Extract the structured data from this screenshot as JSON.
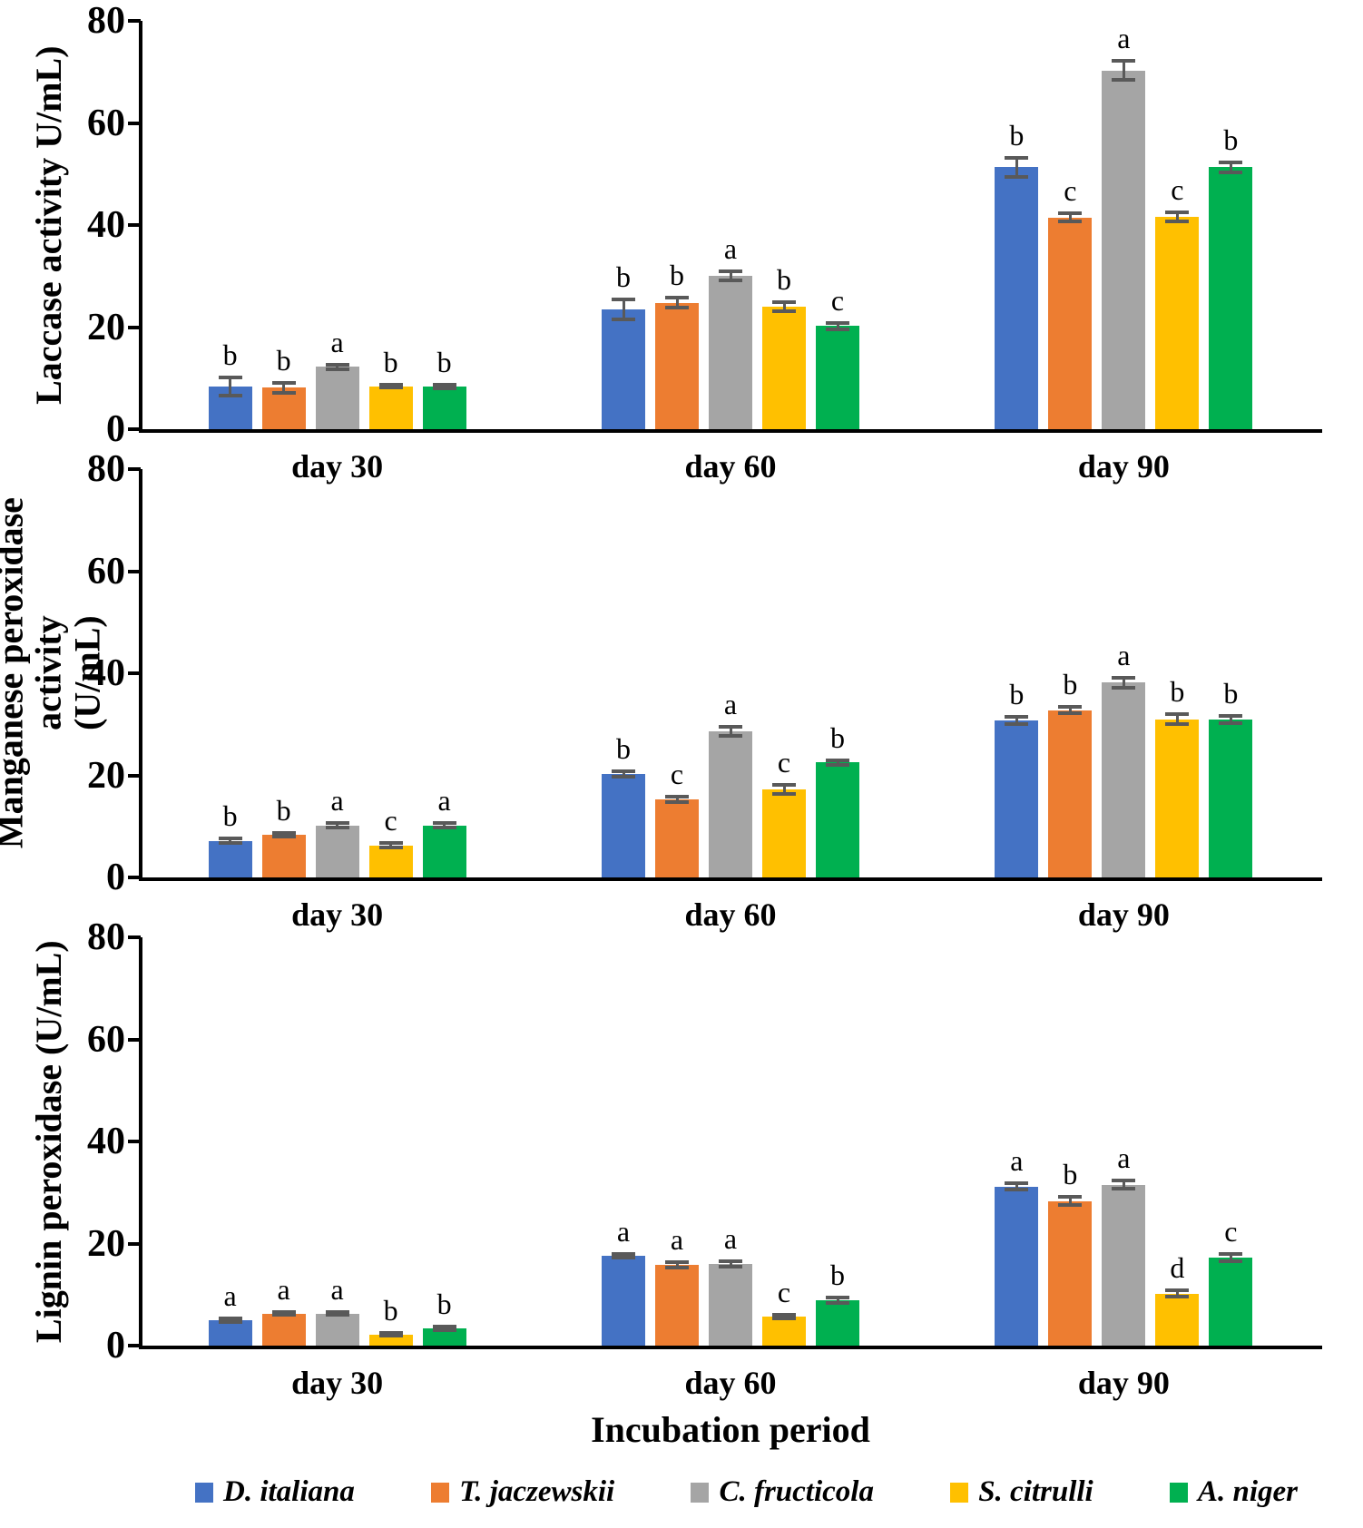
{
  "figure": {
    "xlabel": "Incubation period"
  },
  "colors": {
    "axis": "#000000",
    "error_bar": "#595959",
    "blue": "#4472C4",
    "orange": "#ED7D31",
    "gray": "#A5A5A5",
    "yellow": "#FFC000",
    "green": "#00B050"
  },
  "legend": {
    "items": [
      {
        "label": "D. italiana",
        "color": "#4472C4"
      },
      {
        "label": "T. jaczewskii",
        "color": "#ED7D31"
      },
      {
        "label": "C. fructicola",
        "color": "#A5A5A5"
      },
      {
        "label": "S. citrulli",
        "color": "#FFC000"
      },
      {
        "label": "A. niger",
        "color": "#00B050"
      }
    ]
  },
  "chart_data": [
    {
      "type": "bar",
      "title": "",
      "ylabel": "Laccase activity U/mL)",
      "xlabel": "",
      "ylim": [
        0,
        80
      ],
      "yticks": [
        0,
        20,
        40,
        60,
        80
      ],
      "grid": false,
      "legend_position": "bottom",
      "categories": [
        "day 30",
        "day 60",
        "day 90"
      ],
      "series": [
        {
          "name": "D. italiana",
          "color": "#4472C4",
          "values": [
            8.4,
            23.5,
            51.3
          ],
          "errors": [
            1.8,
            1.9,
            1.9
          ],
          "sig_letters": [
            "b",
            "b",
            "b"
          ]
        },
        {
          "name": "T. jaczewskii",
          "color": "#ED7D31",
          "values": [
            8.1,
            24.8,
            41.5
          ],
          "errors": [
            1.0,
            0.9,
            0.8
          ],
          "sig_letters": [
            "b",
            "b",
            "c"
          ]
        },
        {
          "name": "C. fructicola",
          "color": "#A5A5A5",
          "values": [
            12.2,
            30.0,
            70.3
          ],
          "errors": [
            0.5,
            0.9,
            1.8
          ],
          "sig_letters": [
            "a",
            "a",
            "a"
          ]
        },
        {
          "name": "S. citrulli",
          "color": "#FFC000",
          "values": [
            8.4,
            24.0,
            41.6
          ],
          "errors": [
            0.3,
            0.9,
            0.9
          ],
          "sig_letters": [
            "b",
            "b",
            "c"
          ]
        },
        {
          "name": "A. niger",
          "color": "#00B050",
          "values": [
            8.4,
            20.2,
            51.3
          ],
          "errors": [
            0.4,
            0.6,
            0.9
          ],
          "sig_letters": [
            "b",
            "c",
            "b"
          ]
        }
      ]
    },
    {
      "type": "bar",
      "title": "",
      "ylabel": "Manganese peroxidase activity\n(U/mL)",
      "xlabel": "",
      "ylim": [
        0,
        80
      ],
      "yticks": [
        0,
        20,
        40,
        60,
        80
      ],
      "grid": false,
      "legend_position": "bottom",
      "categories": [
        "day 30",
        "day 60",
        "day 90"
      ],
      "series": [
        {
          "name": "D. italiana",
          "color": "#4472C4",
          "values": [
            7.2,
            20.3,
            30.8
          ],
          "errors": [
            0.4,
            0.5,
            0.7
          ],
          "sig_letters": [
            "b",
            "b",
            "b"
          ]
        },
        {
          "name": "T. jaczewskii",
          "color": "#ED7D31",
          "values": [
            8.4,
            15.3,
            32.8
          ],
          "errors": [
            0.4,
            0.5,
            0.6
          ],
          "sig_letters": [
            "b",
            "c",
            "b"
          ]
        },
        {
          "name": "C. fructicola",
          "color": "#A5A5A5",
          "values": [
            10.2,
            28.6,
            38.2
          ],
          "errors": [
            0.4,
            0.9,
            1.0
          ],
          "sig_letters": [
            "a",
            "a",
            "a"
          ]
        },
        {
          "name": "S. citrulli",
          "color": "#FFC000",
          "values": [
            6.3,
            17.2,
            31.0
          ],
          "errors": [
            0.5,
            0.9,
            1.0
          ],
          "sig_letters": [
            "c",
            "c",
            "b"
          ]
        },
        {
          "name": "A. niger",
          "color": "#00B050",
          "values": [
            10.2,
            22.5,
            31.0
          ],
          "errors": [
            0.4,
            0.5,
            0.7
          ],
          "sig_letters": [
            "a",
            "b",
            "b"
          ]
        }
      ]
    },
    {
      "type": "bar",
      "title": "",
      "ylabel": "Lignin peroxidase (U/mL)",
      "xlabel": "Incubation period",
      "ylim": [
        0,
        80
      ],
      "yticks": [
        0,
        20,
        40,
        60,
        80
      ],
      "grid": false,
      "legend_position": "bottom",
      "categories": [
        "day 30",
        "day 60",
        "day 90"
      ],
      "series": [
        {
          "name": "D. italiana",
          "color": "#4472C4",
          "values": [
            5.0,
            17.6,
            31.2
          ],
          "errors": [
            0.3,
            0.4,
            0.6
          ],
          "sig_letters": [
            "a",
            "a",
            "a"
          ]
        },
        {
          "name": "T. jaczewskii",
          "color": "#ED7D31",
          "values": [
            6.3,
            15.8,
            28.3
          ],
          "errors": [
            0.3,
            0.5,
            0.8
          ],
          "sig_letters": [
            "a",
            "a",
            "b"
          ]
        },
        {
          "name": "C. fructicola",
          "color": "#A5A5A5",
          "values": [
            6.3,
            16.0,
            31.5
          ],
          "errors": [
            0.3,
            0.5,
            0.8
          ],
          "sig_letters": [
            "a",
            "a",
            "a"
          ]
        },
        {
          "name": "S. citrulli",
          "color": "#FFC000",
          "values": [
            2.2,
            5.7,
            10.2
          ],
          "errors": [
            0.3,
            0.3,
            0.6
          ],
          "sig_letters": [
            "b",
            "c",
            "d"
          ]
        },
        {
          "name": "A. niger",
          "color": "#00B050",
          "values": [
            3.4,
            8.9,
            17.2
          ],
          "errors": [
            0.3,
            0.5,
            0.7
          ],
          "sig_letters": [
            "b",
            "b",
            "c"
          ]
        }
      ]
    }
  ]
}
